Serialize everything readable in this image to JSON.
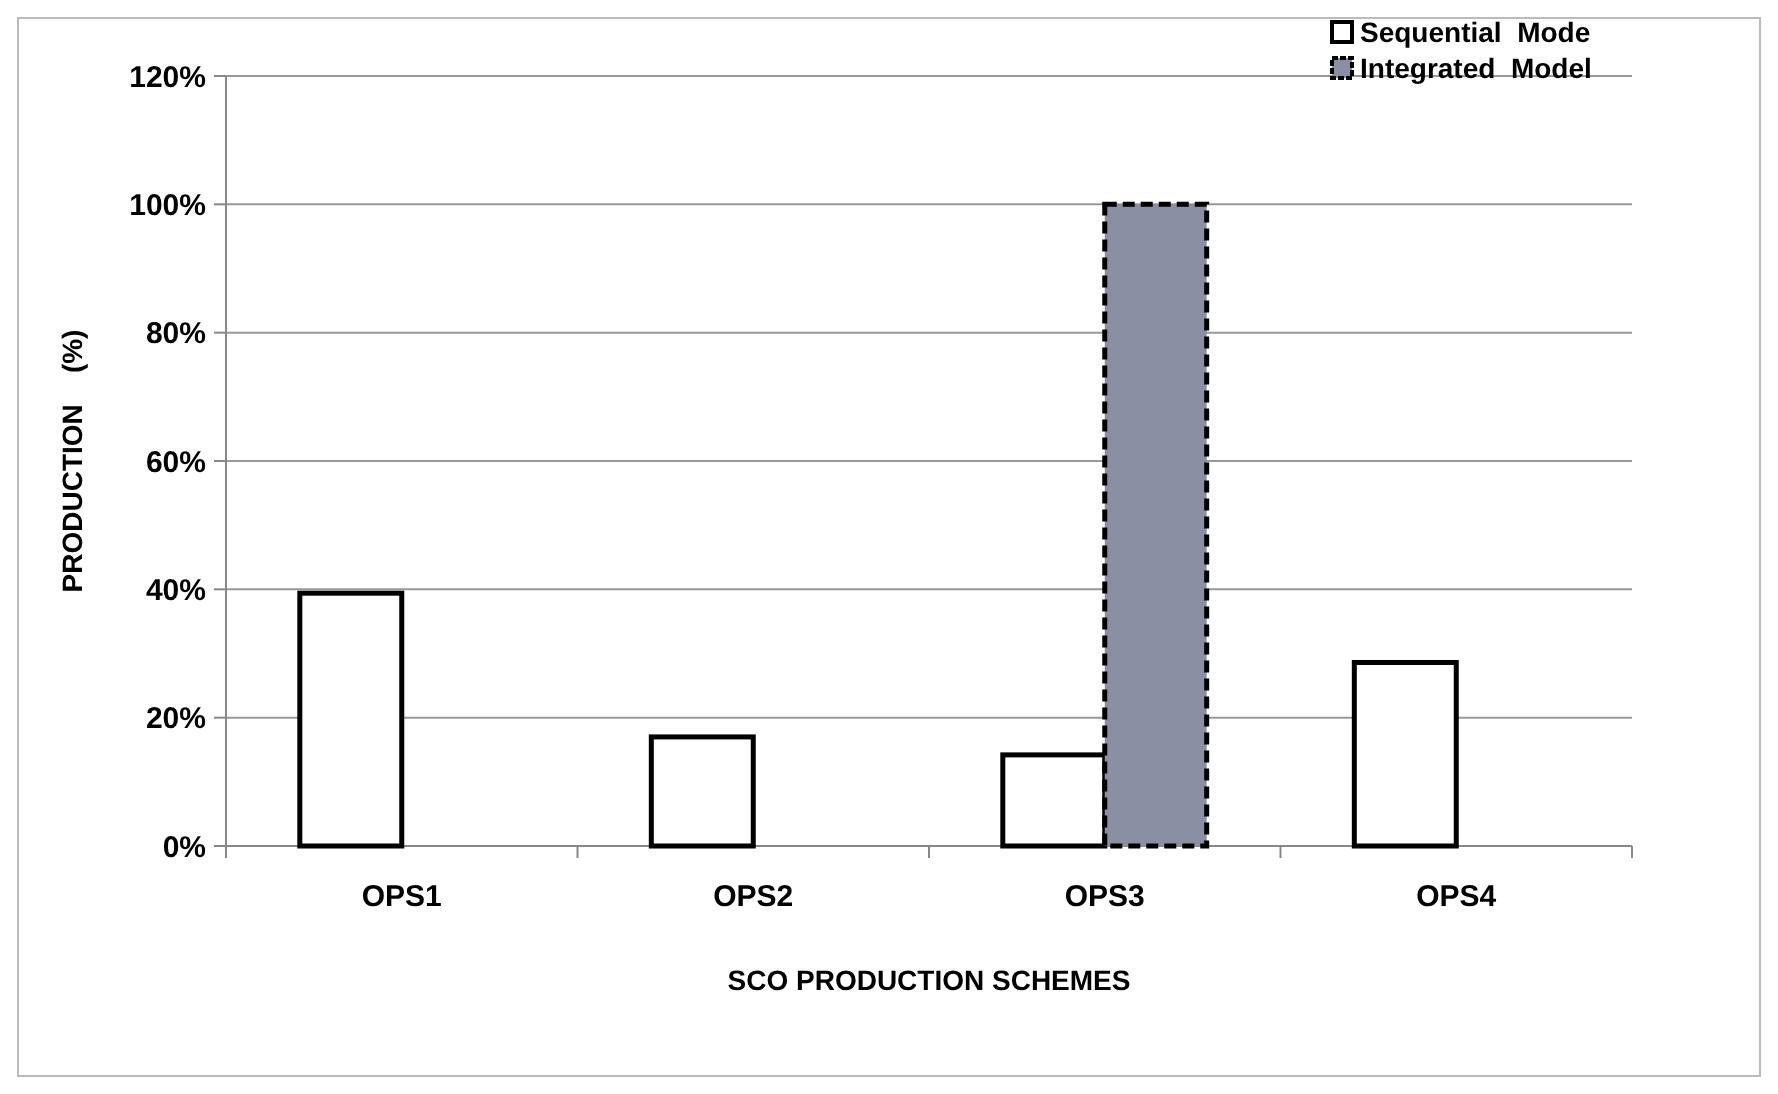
{
  "chart_data": {
    "type": "bar",
    "xlabel": "SCO PRODUCTION SCHEMES",
    "ylabel": "PRODUCTION    (%)",
    "categories": [
      "OPS1",
      "OPS2",
      "OPS3",
      "OPS4"
    ],
    "series": [
      {
        "name": "Sequential  Mode",
        "color": "#ffffff",
        "values": [
          39.4,
          17,
          14.2,
          28.6
        ]
      },
      {
        "name": "Integrated  Model",
        "color": "#8a8fa3",
        "line_style": "dashed",
        "values": [
          null,
          null,
          100,
          null
        ]
      }
    ],
    "ylim": [
      0,
      120
    ],
    "yticks": [
      {
        "value": 0,
        "label": "0%"
      },
      {
        "value": 20,
        "label": "20%"
      },
      {
        "value": 40,
        "label": "40%"
      },
      {
        "value": 60,
        "label": "60%"
      },
      {
        "value": 80,
        "label": "80%"
      },
      {
        "value": 100,
        "label": "100%"
      },
      {
        "value": 120,
        "label": "120%"
      }
    ],
    "grid": "y",
    "legend": "top right"
  }
}
